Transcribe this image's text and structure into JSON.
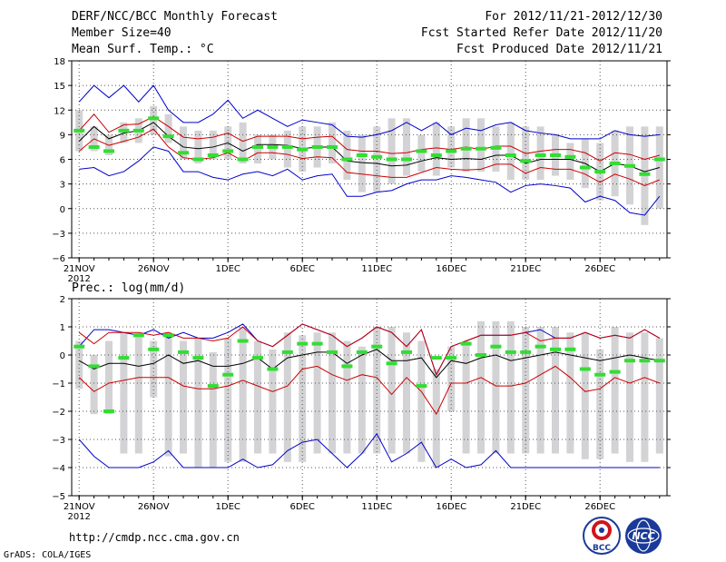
{
  "header": {
    "title": "DERF/NCC/BCC Monthly Forecast",
    "member_size": "Member Size=40",
    "variable": "Mean Surf. Temp.: °C",
    "forecast_period": "For 2012/11/21-2012/12/30",
    "start_date": "Fcst Started Refer Date 2012/11/20",
    "produced_date": "Fcst Produced Date 2012/11/21"
  },
  "footer": {
    "url": "http://cmdp.ncc.cma.gov.cn",
    "grads": "GrADS: COLA/IGES",
    "logo1_text": "BCC",
    "logo2_text": "NCC"
  },
  "colors": {
    "box": "#d3d3d6",
    "mean": "#000000",
    "std": "#cc0000",
    "extreme": "#0000cc",
    "median": "#33dd33",
    "grid": "#555555"
  },
  "chart_data": [
    {
      "type": "box",
      "name": "temperature",
      "title": "Mean Surf. Temp.: °C",
      "ylim": [
        -6,
        18
      ],
      "yticks": [
        -6,
        -3,
        0,
        3,
        6,
        9,
        12,
        15,
        18
      ],
      "xlim": [
        0.5,
        40.5
      ],
      "xticks": [
        {
          "x": 1,
          "label": "21NOV",
          "sub": "2012"
        },
        {
          "x": 6,
          "label": "26NOV"
        },
        {
          "x": 11,
          "label": "1DEC"
        },
        {
          "x": 16,
          "label": "6DEC"
        },
        {
          "x": 21,
          "label": "11DEC"
        },
        {
          "x": 26,
          "label": "16DEC"
        },
        {
          "x": 31,
          "label": "21DEC"
        },
        {
          "x": 36,
          "label": "26DEC"
        }
      ],
      "box_low": [
        7,
        7,
        6.5,
        8,
        8,
        9,
        8,
        6,
        5.5,
        6,
        6,
        5.5,
        5.5,
        6,
        5,
        4.5,
        5,
        5.5,
        3.5,
        2,
        2,
        3,
        4,
        4.5,
        4,
        5,
        4.5,
        4.5,
        4.5,
        3.5,
        3.5,
        3.5,
        4,
        3.5,
        2.5,
        1,
        1.5,
        0.5,
        -2,
        0
      ],
      "box_high": [
        12,
        10,
        9,
        10.5,
        11,
        12.5,
        11.5,
        10,
        9.5,
        9.5,
        10,
        10.5,
        9,
        9,
        9.5,
        10,
        10,
        10.5,
        9.5,
        9,
        10,
        11,
        11,
        9,
        10.5,
        10,
        11,
        11,
        10,
        10.5,
        10,
        10,
        9,
        8,
        8.5,
        8,
        9.5,
        10,
        10,
        10
      ],
      "mean": [
        8.2,
        10,
        8.5,
        9.2,
        9.5,
        10.5,
        8.8,
        7.5,
        7.3,
        7.5,
        8,
        7,
        7.8,
        7.8,
        7.7,
        7.3,
        7.5,
        7.5,
        5.8,
        5.6,
        5.5,
        5.2,
        5.3,
        5.8,
        6.2,
        6,
        6.1,
        6,
        6.5,
        6.5,
        5.5,
        6,
        6,
        6,
        5.5,
        4.5,
        5.5,
        5.2,
        4.5,
        5
      ],
      "std_high": [
        9.5,
        11.5,
        9.3,
        10.2,
        10.3,
        11.2,
        10,
        8.7,
        8.5,
        8.7,
        9.2,
        8.2,
        8.8,
        8.8,
        8.8,
        8.5,
        8.7,
        8.8,
        7.2,
        7,
        7,
        6.7,
        6.8,
        7.2,
        7.4,
        7.2,
        7.5,
        7.2,
        7.6,
        7.6,
        6.7,
        7,
        7.2,
        7.2,
        6.8,
        5.8,
        6.8,
        6.6,
        6,
        6.5
      ],
      "std_low": [
        7,
        8.5,
        7.7,
        8.2,
        8.7,
        9.7,
        7.5,
        6.2,
        6,
        6.2,
        6.8,
        5.8,
        6.8,
        6.8,
        6.6,
        6.1,
        6.3,
        6.2,
        4.4,
        4.2,
        4,
        3.8,
        3.8,
        4.4,
        5,
        4.8,
        4.7,
        4.8,
        5.4,
        5.4,
        4.3,
        5,
        4.8,
        4.8,
        4.2,
        3.2,
        4.2,
        3.6,
        2.8,
        3.5
      ],
      "max": [
        13,
        15,
        13.5,
        15,
        13,
        15,
        12,
        10.5,
        10.5,
        11.5,
        13.2,
        11,
        12,
        11,
        10,
        10.8,
        10.5,
        10.2,
        8.8,
        8.7,
        9,
        9.5,
        10.5,
        9.5,
        10.5,
        9,
        9.8,
        9.5,
        10.2,
        10.5,
        9.5,
        9.2,
        9,
        8.5,
        8.5,
        8.5,
        9.5,
        9,
        8.8,
        9
      ],
      "min": [
        4.8,
        5,
        4,
        4.5,
        5.8,
        7.5,
        7,
        4.5,
        4.5,
        3.8,
        3.5,
        4.2,
        4.5,
        4,
        4.8,
        3.5,
        4,
        4.2,
        1.5,
        1.5,
        2,
        2.2,
        3,
        3.5,
        3.5,
        4,
        3.8,
        3.5,
        3.2,
        2,
        2.8,
        3,
        2.8,
        2.5,
        0.8,
        1.5,
        1,
        -0.5,
        -0.8,
        1.5
      ],
      "median": [
        9.5,
        7.5,
        7,
        9.5,
        9.5,
        11,
        8.8,
        6.8,
        6,
        6.5,
        7,
        6,
        7.5,
        7.5,
        7.5,
        7.2,
        7.5,
        7.5,
        6,
        6.5,
        6.3,
        6,
        6,
        7,
        6.5,
        7,
        7.3,
        7.3,
        7.4,
        6.5,
        5.8,
        6.5,
        6.5,
        6.3,
        5,
        4.5,
        5.5,
        5.2,
        4.2,
        6
      ]
    },
    {
      "type": "box",
      "name": "precipitation",
      "title": "Prec.: log(mm/d)",
      "ylim": [
        -5,
        2
      ],
      "yticks": [
        -5,
        -4,
        -3,
        -2,
        -1,
        0,
        1,
        2
      ],
      "xlim": [
        0.5,
        40.5
      ],
      "xticks": [
        {
          "x": 1,
          "label": "21NOV",
          "sub": "2012"
        },
        {
          "x": 6,
          "label": "26NOV"
        },
        {
          "x": 11,
          "label": "1DEC"
        },
        {
          "x": 16,
          "label": "6DEC"
        },
        {
          "x": 21,
          "label": "11DEC"
        },
        {
          "x": 26,
          "label": "16DEC"
        },
        {
          "x": 31,
          "label": "21DEC"
        },
        {
          "x": 36,
          "label": "26DEC"
        }
      ],
      "box_low": [
        -1.2,
        -2.1,
        -2.1,
        -3.5,
        -3.5,
        -1.5,
        -3.6,
        -3.5,
        -4,
        -4,
        -3.8,
        -3.8,
        -3.5,
        -3.5,
        -3.8,
        -3.8,
        -3.5,
        -3.5,
        -3.5,
        -3.5,
        -3.5,
        -3.5,
        -3.5,
        -3.8,
        -4,
        -2,
        -3.5,
        -3.5,
        -3.5,
        -3.5,
        -3.5,
        -3.5,
        -3.5,
        -3.5,
        -3.7,
        -3.7,
        -3.5,
        -3.8,
        -3.8,
        -3.5
      ],
      "box_high": [
        0.5,
        0,
        0.5,
        0.8,
        0.8,
        0.5,
        0.8,
        0.5,
        0.6,
        0.1,
        0.6,
        1,
        0.5,
        0.2,
        0.8,
        0.7,
        0.8,
        0.8,
        0.5,
        0.3,
        1,
        1,
        0.8,
        0.5,
        -0.5,
        0.3,
        0.5,
        1.2,
        1.2,
        1.2,
        1,
        1,
        1,
        0.8,
        0.8,
        0.2,
        1,
        0.8,
        0.8,
        0.6
      ],
      "mean": [
        -0.2,
        -0.5,
        -0.3,
        -0.3,
        -0.4,
        -0.3,
        0,
        -0.3,
        -0.2,
        -0.4,
        -0.4,
        -0.3,
        -0.1,
        -0.5,
        -0.1,
        0,
        0.1,
        0.1,
        -0.3,
        0,
        0.2,
        -0.2,
        -0.2,
        -0.1,
        -0.8,
        -0.2,
        -0.3,
        -0.1,
        0,
        -0.2,
        -0.1,
        0,
        0.1,
        0,
        -0.1,
        -0.2,
        -0.1,
        0,
        -0.1,
        -0.2
      ],
      "std_high": [
        0.8,
        0.4,
        0.8,
        0.8,
        0.8,
        0.7,
        0.8,
        0.6,
        0.6,
        0.5,
        0.6,
        1,
        0.5,
        0.3,
        0.7,
        1.1,
        0.9,
        0.7,
        0.3,
        0.6,
        1,
        0.8,
        0.3,
        0.9,
        -0.7,
        0.3,
        0.5,
        0.7,
        0.7,
        0.7,
        0.8,
        0.5,
        0.6,
        0.6,
        0.8,
        0.6,
        0.7,
        0.6,
        0.9,
        0.6
      ],
      "std_low": [
        -0.8,
        -1.3,
        -1,
        -0.9,
        -0.8,
        -0.8,
        -0.8,
        -1.1,
        -1.2,
        -1.2,
        -1.1,
        -0.9,
        -1.1,
        -1.3,
        -1.1,
        -0.5,
        -0.4,
        -0.7,
        -0.9,
        -0.7,
        -0.8,
        -1.4,
        -0.8,
        -1.3,
        -2.1,
        -1,
        -1,
        -0.8,
        -1.1,
        -1.1,
        -1,
        -0.7,
        -0.4,
        -0.8,
        -1.3,
        -1.2,
        -0.8,
        -1,
        -0.8,
        -1
      ],
      "max": [
        0.3,
        0.9,
        0.9,
        0.8,
        0.7,
        0.9,
        0.6,
        0.8,
        0.6,
        0.6,
        0.8,
        1.1,
        0.5,
        0.3,
        0.7,
        1.1,
        0.9,
        0.7,
        0.3,
        0.6,
        1,
        0.8,
        0.3,
        0.9,
        -0.7,
        0.3,
        0.5,
        0.7,
        0.7,
        0.7,
        0.8,
        0.9,
        0.6,
        0.6,
        0.8,
        0.6,
        0.7,
        0.6,
        0.9,
        0.6
      ],
      "min": [
        -3,
        -3.6,
        -4,
        -4,
        -4,
        -3.8,
        -3.4,
        -4,
        -4,
        -4,
        -4,
        -3.7,
        -4,
        -3.9,
        -3.4,
        -3.1,
        -3,
        -3.5,
        -4,
        -3.5,
        -2.8,
        -3.8,
        -3.5,
        -3.1,
        -4,
        -3.7,
        -4,
        -3.9,
        -3.4,
        -4,
        -4,
        -4,
        -4,
        -4,
        -4,
        -4,
        -4,
        -4,
        -4,
        -4
      ],
      "median": [
        0.3,
        -0.4,
        -2,
        -0.1,
        0.7,
        0.2,
        0.7,
        0.1,
        -0.1,
        -1.1,
        -0.7,
        0.5,
        -0.1,
        -0.5,
        0.1,
        0.4,
        0.4,
        0.1,
        -0.4,
        0.1,
        0.3,
        -0.3,
        0.1,
        -1.1,
        -0.1,
        -0.1,
        0.4,
        0,
        0.3,
        0.1,
        0.1,
        0.3,
        0.2,
        0.2,
        -0.5,
        -0.7,
        -0.6,
        -0.2,
        -0.2,
        -0.2
      ]
    }
  ]
}
